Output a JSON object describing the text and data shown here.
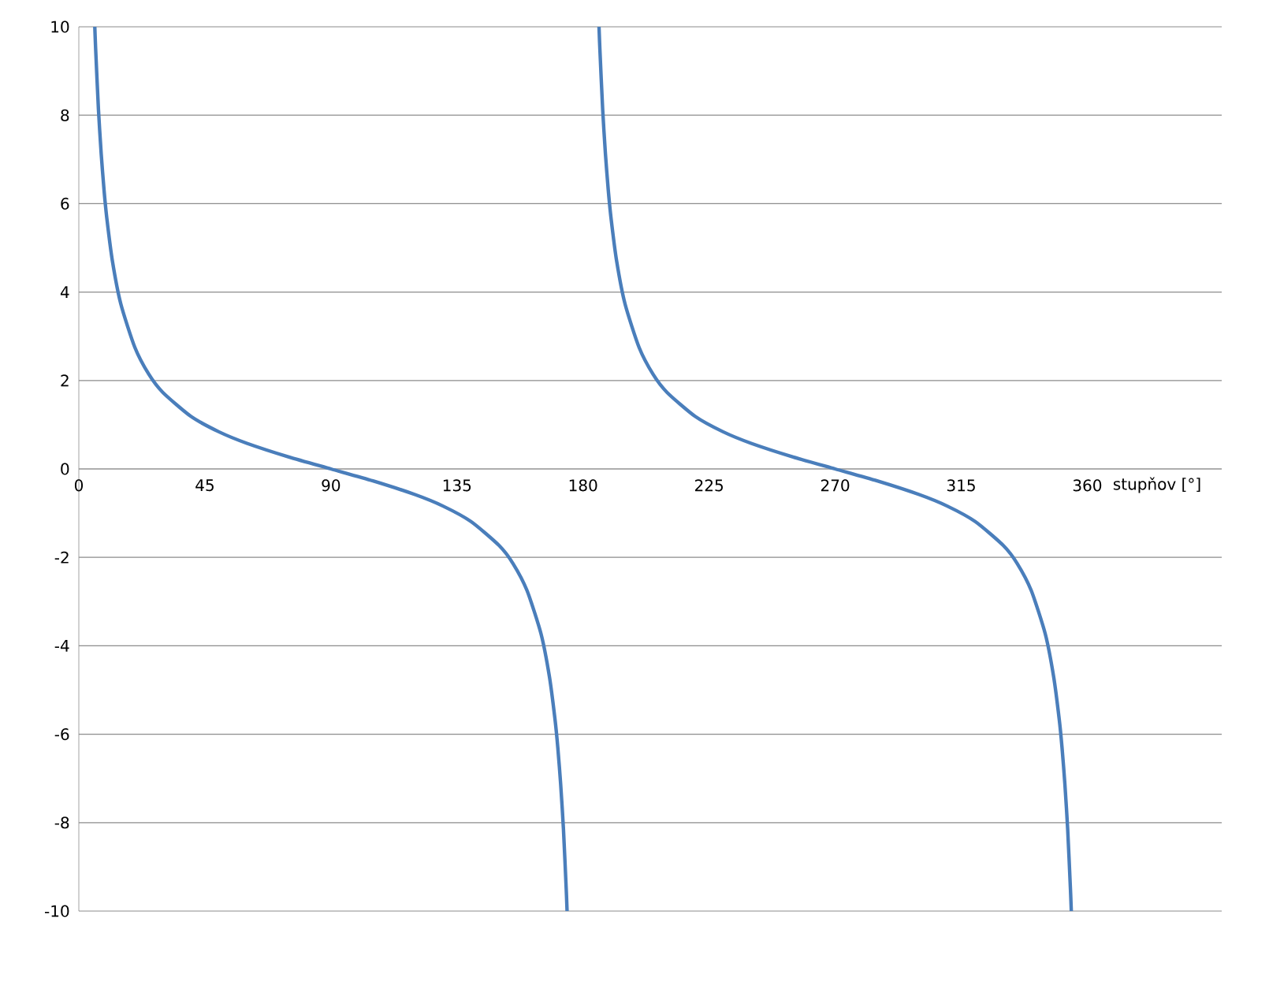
{
  "chart_data": {
    "type": "line",
    "xlabel": "stupňov [°]",
    "x": [
      5.7,
      6,
      7,
      8,
      9,
      10,
      12,
      15,
      20,
      25,
      30,
      40,
      50,
      60,
      75,
      90,
      105,
      120,
      130,
      140,
      150,
      155,
      160,
      165,
      168,
      170,
      171,
      172,
      173,
      174,
      174.3,
      180,
      185.7,
      186,
      187,
      188,
      189,
      190,
      192,
      195,
      200,
      205,
      210,
      220,
      230,
      240,
      255,
      270,
      285,
      300,
      310,
      320,
      330,
      335,
      340,
      345,
      348,
      350,
      351,
      352,
      353,
      354,
      354.3
    ],
    "series": [
      {
        "color": "#4a7ebb",
        "values": [
          10.0,
          9.51,
          8.14,
          7.12,
          6.31,
          5.67,
          4.7,
          3.73,
          2.75,
          2.14,
          1.73,
          1.19,
          0.84,
          0.58,
          0.27,
          0.0,
          -0.27,
          -0.58,
          -0.84,
          -1.19,
          -1.73,
          -2.14,
          -2.75,
          -3.73,
          -4.7,
          -5.67,
          -6.31,
          -7.12,
          -8.14,
          -9.51,
          -10.0,
          null,
          10.0,
          9.51,
          8.14,
          7.12,
          6.31,
          5.67,
          4.7,
          3.73,
          2.75,
          2.14,
          1.73,
          1.19,
          0.84,
          0.58,
          0.27,
          0.0,
          -0.27,
          -0.58,
          -0.84,
          -1.19,
          -1.73,
          -2.14,
          -2.75,
          -3.73,
          -4.7,
          -5.67,
          -6.31,
          -7.12,
          -8.14,
          -9.51,
          -10.0
        ]
      }
    ],
    "xlim": [
      0,
      408
    ],
    "ylim": [
      -10,
      10
    ],
    "xticks": [
      0,
      45,
      90,
      135,
      180,
      225,
      270,
      315,
      360
    ],
    "yticks": [
      -10,
      -8,
      -6,
      -4,
      -2,
      0,
      2,
      4,
      6,
      8,
      10
    ],
    "grid": "y"
  }
}
